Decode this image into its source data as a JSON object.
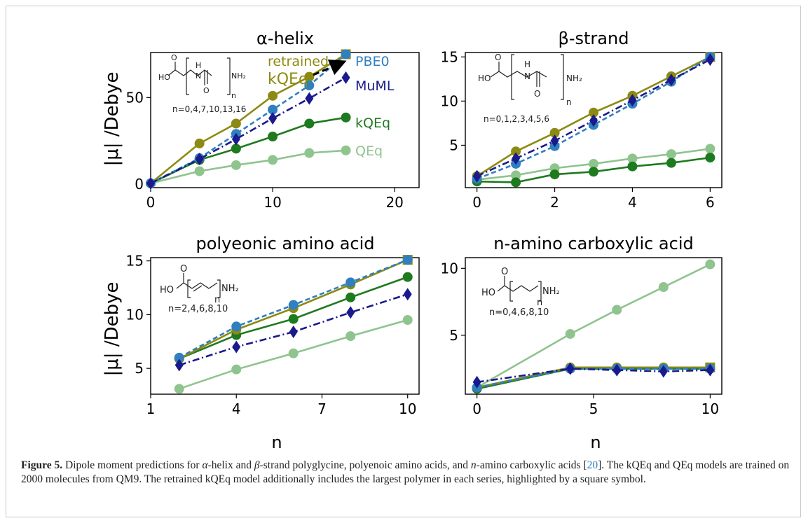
{
  "figure": {
    "ylabel": "|μ| /Debye",
    "xlabel": "n"
  },
  "caption": {
    "label": "Figure 5.",
    "part1": " Dipole moment predictions for ",
    "alpha": "α",
    "part2": "-helix and ",
    "beta": "β",
    "part3": "-strand polyglycine, polyenoic amino acids, and ",
    "n_italic": "n",
    "part4": "-amino carboxylic acids [",
    "ref": "20",
    "part5": "]. The kQEq and QEq models are trained on 2000 molecules from QM9. The retrained kQEq model additionally includes the largest polymer in each series, highlighted by a square symbol."
  },
  "colors": {
    "retrained": "#8c8a12",
    "pbe0": "#2f7fc1",
    "muml": "#1a1a8c",
    "kqeq": "#1e7a1e",
    "qeq": "#8fc48f"
  },
  "chart_data": [
    {
      "type": "line",
      "title": "α-helix",
      "xlim": [
        0,
        22
      ],
      "ylim": [
        -2,
        76
      ],
      "xticks": [
        0,
        10,
        20
      ],
      "yticks": [
        0,
        50
      ],
      "molecule_label": "n=0,4,7,10,13,16",
      "legend_labels": [
        "retrained kQEq",
        "PBE0",
        "MuML",
        "kQEq",
        "QEq"
      ],
      "series": [
        {
          "name": "retrained kQEq",
          "x": [
            0,
            4,
            7,
            10,
            13,
            16
          ],
          "y": [
            0.5,
            23.5,
            35,
            51,
            62,
            75
          ]
        },
        {
          "name": "PBE0",
          "x": [
            0,
            4,
            7,
            10,
            13,
            16
          ],
          "y": [
            0.5,
            15,
            29,
            43,
            57,
            75
          ]
        },
        {
          "name": "MuML",
          "x": [
            0,
            4,
            7,
            10,
            13,
            16
          ],
          "y": [
            0.5,
            14.5,
            26,
            38,
            49.5,
            61.5
          ]
        },
        {
          "name": "kQEq",
          "x": [
            0,
            4,
            7,
            10,
            13,
            16
          ],
          "y": [
            0.5,
            14,
            20.5,
            27.5,
            35,
            38.5
          ]
        },
        {
          "name": "QEq",
          "x": [
            0,
            4,
            7,
            10,
            13,
            16
          ],
          "y": [
            0.5,
            7.5,
            11,
            14,
            18,
            19.5
          ]
        }
      ]
    },
    {
      "type": "line",
      "title": "β-strand",
      "xlim": [
        -0.3,
        6.3
      ],
      "ylim": [
        0.2,
        15.5
      ],
      "xticks": [
        0,
        2,
        4,
        6
      ],
      "yticks": [
        5,
        10,
        15
      ],
      "molecule_label": "n=0,1,2,3,4,5,6",
      "series": [
        {
          "name": "retrained kQEq",
          "x": [
            0,
            1,
            2,
            3,
            4,
            5,
            6
          ],
          "y": [
            1.5,
            4.3,
            6.4,
            8.7,
            10.6,
            12.8,
            15
          ]
        },
        {
          "name": "PBE0",
          "x": [
            0,
            1,
            2,
            3,
            4,
            5,
            6
          ],
          "y": [
            1.2,
            2.9,
            4.9,
            7.3,
            9.7,
            12.2,
            15
          ]
        },
        {
          "name": "MuML",
          "x": [
            0,
            1,
            2,
            3,
            4,
            5,
            6
          ],
          "y": [
            1.5,
            3.5,
            5.5,
            7.8,
            10.1,
            12.4,
            14.7
          ]
        },
        {
          "name": "kQEq",
          "x": [
            0,
            1,
            2,
            3,
            4,
            5,
            6
          ],
          "y": [
            0.9,
            0.8,
            1.7,
            2.0,
            2.6,
            3.0,
            3.6
          ]
        },
        {
          "name": "QEq",
          "x": [
            0,
            1,
            2,
            3,
            4,
            5,
            6
          ],
          "y": [
            1.1,
            1.6,
            2.4,
            2.9,
            3.5,
            4.0,
            4.6
          ]
        }
      ]
    },
    {
      "type": "line",
      "title": "polyeonic amino acid",
      "xlim": [
        1,
        10.4
      ],
      "ylim": [
        2.6,
        15.3
      ],
      "xticks": [
        1,
        4,
        7,
        10
      ],
      "yticks": [
        5,
        10,
        15
      ],
      "molecule_label": "n=2,4,6,8,10",
      "series": [
        {
          "name": "retrained kQEq",
          "x": [
            2,
            4,
            6,
            8,
            10
          ],
          "y": [
            5.9,
            8.6,
            10.6,
            12.8,
            15.1
          ]
        },
        {
          "name": "PBE0",
          "x": [
            2,
            4,
            6,
            8,
            10
          ],
          "y": [
            6.0,
            8.9,
            10.9,
            13.0,
            15.1
          ]
        },
        {
          "name": "MuML",
          "x": [
            2,
            4,
            6,
            8,
            10
          ],
          "y": [
            5.3,
            7.0,
            8.4,
            10.2,
            11.9
          ]
        },
        {
          "name": "kQEq",
          "x": [
            2,
            4,
            6,
            8,
            10
          ],
          "y": [
            5.9,
            8.1,
            9.6,
            11.6,
            13.5
          ]
        },
        {
          "name": "QEq",
          "x": [
            2,
            4,
            6,
            8,
            10
          ],
          "y": [
            3.1,
            4.9,
            6.4,
            8.0,
            9.5
          ]
        }
      ]
    },
    {
      "type": "line",
      "title": "n-amino carboxylic acid",
      "xlim": [
        -0.5,
        10.5
      ],
      "ylim": [
        0.6,
        10.8
      ],
      "xticks": [
        0,
        5,
        10
      ],
      "yticks": [
        5,
        10
      ],
      "molecule_label": "n=0,4,6,8,10",
      "series": [
        {
          "name": "retrained kQEq",
          "x": [
            0,
            4,
            6,
            8,
            10
          ],
          "y": [
            1.1,
            2.6,
            2.6,
            2.6,
            2.6
          ]
        },
        {
          "name": "PBE0",
          "x": [
            0,
            4,
            6,
            8,
            10
          ],
          "y": [
            1.1,
            2.5,
            2.5,
            2.5,
            2.5
          ]
        },
        {
          "name": "MuML",
          "x": [
            0,
            4,
            6,
            8,
            10
          ],
          "y": [
            1.5,
            2.5,
            2.4,
            2.3,
            2.4
          ]
        },
        {
          "name": "kQEq",
          "x": [
            0,
            4,
            6,
            8,
            10
          ],
          "y": [
            1.0,
            2.5,
            2.5,
            2.5,
            2.5
          ]
        },
        {
          "name": "QEq",
          "x": [
            0,
            4,
            6,
            8,
            10
          ],
          "y": [
            1.1,
            5.1,
            6.9,
            8.6,
            10.3
          ]
        }
      ]
    }
  ]
}
